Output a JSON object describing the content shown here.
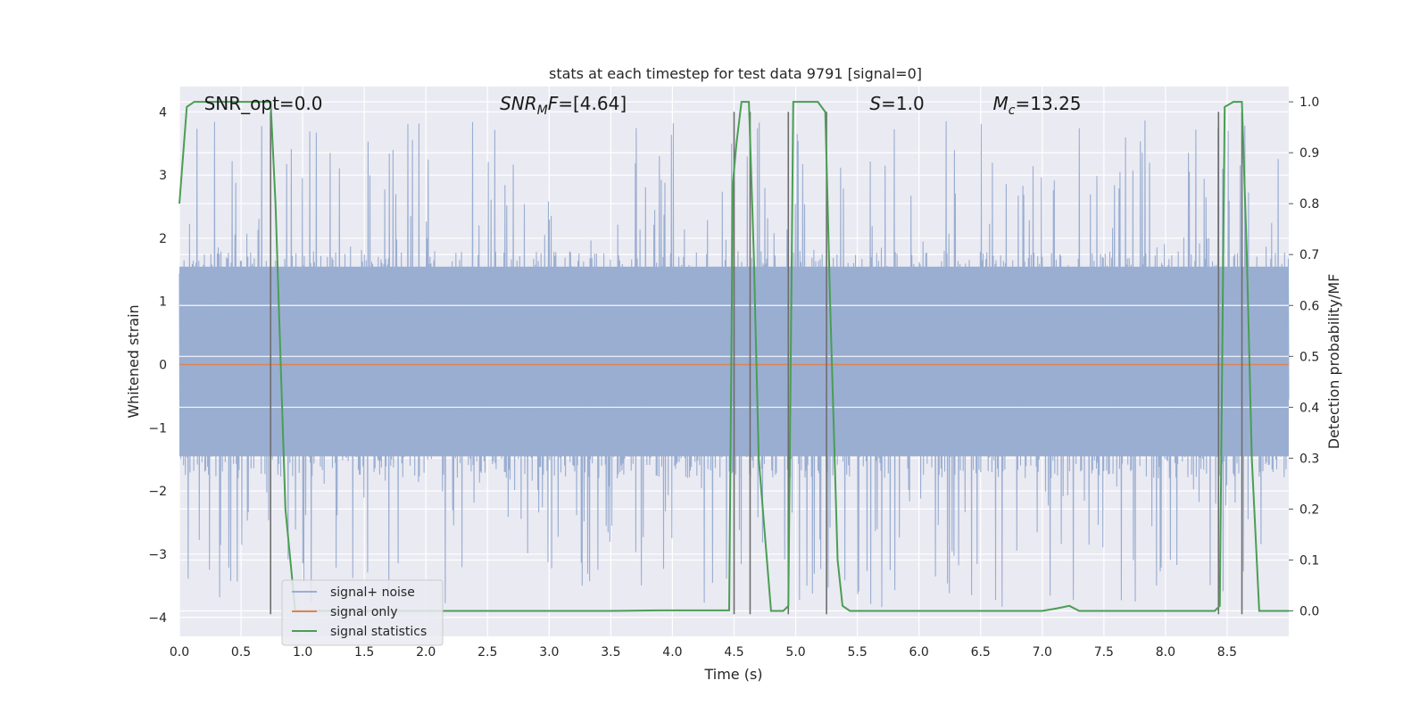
{
  "chart_data": {
    "type": "line",
    "title": "stats at each timestep for test data 9791 [signal=0]",
    "xlabel": "Time (s)",
    "ylabel": "Whitened strain",
    "y2label": "Detection probability/MF",
    "xlim": [
      0.0,
      9.0
    ],
    "ylim": [
      -4.3,
      4.4
    ],
    "y2lim": [
      -0.05,
      1.03
    ],
    "xticks": [
      "0.0",
      "0.5",
      "1.0",
      "1.5",
      "2.0",
      "2.5",
      "3.0",
      "3.5",
      "4.0",
      "4.5",
      "5.0",
      "5.5",
      "6.0",
      "6.5",
      "7.0",
      "7.5",
      "8.0",
      "8.5"
    ],
    "yticks": [
      "4",
      "3",
      "2",
      "1",
      "0",
      "−1",
      "−2",
      "−3",
      "−4"
    ],
    "y2ticks": [
      "1.0",
      "0.9",
      "0.8",
      "0.7",
      "0.6",
      "0.5",
      "0.4",
      "0.3",
      "0.2",
      "0.1",
      "0.0"
    ],
    "grid": true,
    "legend_position": "lower-left",
    "colors": {
      "noise": "#9aaed1",
      "signal": "#dd8452",
      "stats": "#4a9e54",
      "vlines": "#6e6e6e",
      "background": "#eaeaf2",
      "grid": "#ffffff"
    },
    "annotations": [
      {
        "id": "snr-opt",
        "prefix": "SNR_opt=",
        "value": "0.0",
        "x": 0.2,
        "y": 4.12
      },
      {
        "id": "snr-mf",
        "prefix": "SNR",
        "sub": "M",
        "mid": "F=",
        "value": "[4.64]",
        "x": 2.6,
        "y": 4.12
      },
      {
        "id": "s-stat",
        "prefix": "S",
        "value": "=1.0",
        "x": 5.6,
        "y": 4.12
      },
      {
        "id": "mc",
        "prefix": "M",
        "sub": "c",
        "value": "=13.25",
        "x": 6.6,
        "y": 4.12
      }
    ],
    "series": [
      {
        "name": "signal+ noise",
        "kind": "noise",
        "samples": 2400,
        "core_range": [
          -1.45,
          1.55
        ],
        "spike_range": [
          -3.9,
          3.9
        ]
      },
      {
        "name": "signal only",
        "kind": "flat",
        "value": 0.0
      },
      {
        "name": "signal statistics",
        "axis": "y2",
        "x": [
          0.0,
          0.06,
          0.12,
          0.7,
          0.74,
          0.78,
          0.86,
          0.94,
          1.5,
          2.5,
          3.5,
          3.9,
          4.2,
          4.46,
          4.49,
          4.52,
          4.56,
          4.6,
          4.62,
          4.66,
          4.7,
          4.8,
          4.9,
          4.94,
          4.98,
          5.06,
          5.18,
          5.24,
          5.28,
          5.34,
          5.38,
          5.44,
          6.0,
          7.0,
          7.12,
          7.22,
          7.3,
          8.0,
          8.4,
          8.44,
          8.48,
          8.55,
          8.62,
          8.66,
          8.7,
          8.76,
          9.0
        ],
        "y": [
          0.8,
          0.99,
          1.0,
          1.0,
          1.0,
          0.8,
          0.2,
          0.0,
          0.0,
          0.0,
          0.0,
          0.001,
          0.001,
          0.001,
          0.84,
          0.92,
          1.0,
          1.0,
          1.0,
          0.7,
          0.3,
          0.0,
          0.0,
          0.01,
          1.0,
          1.0,
          1.0,
          0.98,
          0.6,
          0.1,
          0.01,
          0.0,
          0.0,
          0.0,
          0.005,
          0.01,
          0.0,
          0.0,
          0.0,
          0.01,
          0.99,
          1.0,
          1.0,
          0.7,
          0.3,
          0.0,
          0.0
        ]
      }
    ],
    "vlines": [
      0.74,
      4.5,
      4.63,
      4.94,
      5.25,
      8.43,
      8.62
    ],
    "vlines_range": [
      -3.95,
      4.0
    ],
    "legend": [
      "signal+ noise",
      "signal only",
      "signal statistics"
    ]
  }
}
